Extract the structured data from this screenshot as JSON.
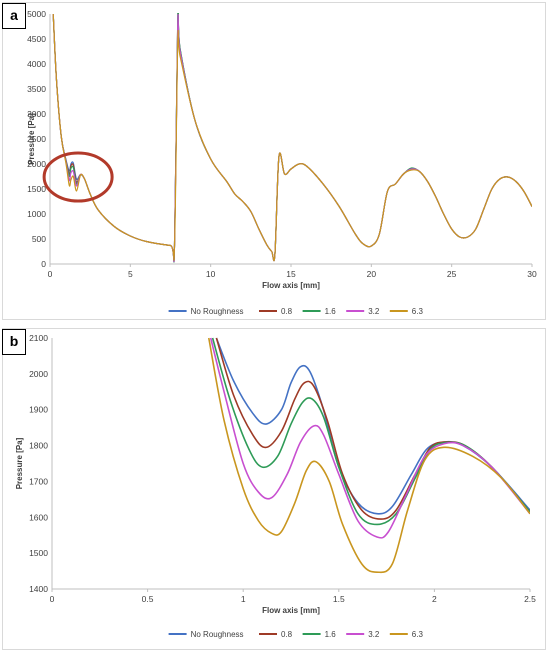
{
  "chart_data": [
    {
      "panel_label": "a",
      "type": "line",
      "xlabel": "Flow axis [mm]",
      "ylabel": "Pressure [Pa]",
      "xlim": [
        0,
        30
      ],
      "ylim": [
        0,
        5000
      ],
      "xticks": [
        "0",
        "5",
        "10",
        "15",
        "20",
        "25",
        "30"
      ],
      "yticks": [
        "0",
        "500",
        "1000",
        "1500",
        "2000",
        "2500",
        "3000",
        "3500",
        "4000",
        "4500",
        "5000"
      ],
      "grid": false,
      "legend": "bottom",
      "annotation": "red-circle",
      "series": [
        {
          "name": "No Roughness",
          "color": "#4472c4",
          "x": [
            0.2,
            0.4,
            0.7,
            1.0,
            1.2,
            1.3,
            1.45,
            1.65,
            1.9,
            2.15,
            2.5,
            3,
            4,
            5,
            6,
            7.5,
            7.75,
            7.95,
            8.1,
            9,
            10,
            11,
            11.5,
            12,
            12.5,
            13,
            13.5,
            13.8,
            14.0,
            14.25,
            14.6,
            15,
            15.5,
            16,
            17,
            18,
            19,
            19.5,
            20,
            20.5,
            21,
            21.5,
            22,
            22.5,
            23,
            23.5,
            24,
            24.5,
            25,
            25.5,
            26,
            26.5,
            27,
            27.5,
            28,
            28.5,
            29,
            29.5,
            30
          ],
          "y": [
            5000,
            3700,
            2550,
            2080,
            1860,
            2000,
            2020,
            1700,
            1790,
            1700,
            1400,
            1080,
            750,
            560,
            450,
            370,
            380,
            4850,
            4300,
            2900,
            2100,
            1650,
            1400,
            1250,
            1050,
            700,
            380,
            250,
            200,
            2150,
            1800,
            1900,
            2000,
            1950,
            1600,
            1150,
            600,
            400,
            360,
            600,
            1450,
            1600,
            1800,
            1900,
            1850,
            1650,
            1350,
            1000,
            700,
            540,
            540,
            700,
            1100,
            1500,
            1700,
            1740,
            1650,
            1450,
            1150
          ]
        },
        {
          "name": "0.8",
          "color": "#9e3a26",
          "x": [
            0.2,
            0.4,
            0.7,
            1.0,
            1.2,
            1.3,
            1.45,
            1.65,
            1.9,
            2.15,
            2.5,
            3,
            4,
            5,
            6,
            7.5,
            7.75,
            7.95,
            8.1,
            9,
            10,
            11,
            11.5,
            12,
            12.5,
            13,
            13.5,
            13.8,
            14.0,
            14.25,
            14.6,
            15,
            15.5,
            16,
            17,
            18,
            19,
            19.5,
            20,
            20.5,
            21,
            21.5,
            22,
            22.5,
            23,
            23.5,
            24,
            24.5,
            25,
            25.5,
            26,
            26.5,
            27,
            27.5,
            28,
            28.5,
            29,
            29.5,
            30
          ],
          "y": [
            5000,
            3700,
            2550,
            2060,
            1800,
            1960,
            1980,
            1640,
            1790,
            1700,
            1400,
            1080,
            750,
            560,
            450,
            370,
            380,
            4830,
            4280,
            2900,
            2100,
            1650,
            1400,
            1250,
            1050,
            700,
            380,
            250,
            200,
            2150,
            1800,
            1900,
            2000,
            1950,
            1600,
            1150,
            600,
            400,
            360,
            600,
            1450,
            1600,
            1800,
            1900,
            1850,
            1650,
            1350,
            1000,
            700,
            540,
            540,
            700,
            1100,
            1500,
            1700,
            1740,
            1650,
            1450,
            1150
          ]
        },
        {
          "name": "1.6",
          "color": "#2e9b57",
          "x": [
            0.2,
            0.4,
            0.7,
            1.0,
            1.2,
            1.3,
            1.45,
            1.65,
            1.9,
            2.15,
            2.5,
            3,
            4,
            5,
            6,
            7.5,
            7.75,
            7.95,
            8.1,
            9,
            10,
            11,
            11.5,
            12,
            12.5,
            13,
            13.5,
            13.8,
            14.0,
            14.25,
            14.6,
            15,
            15.5,
            16,
            17,
            18,
            19,
            19.5,
            20,
            20.5,
            21,
            21.5,
            22,
            22.5,
            23,
            23.5,
            24,
            24.5,
            25,
            25.5,
            26,
            26.5,
            27,
            27.5,
            28,
            28.5,
            29,
            29.5,
            30
          ],
          "y": [
            5000,
            3700,
            2550,
            2050,
            1750,
            1910,
            1930,
            1600,
            1790,
            1700,
            1400,
            1080,
            750,
            560,
            450,
            370,
            380,
            4900,
            4300,
            2900,
            2100,
            1650,
            1400,
            1250,
            1050,
            700,
            380,
            250,
            200,
            2150,
            1800,
            1900,
            2000,
            1950,
            1600,
            1150,
            600,
            400,
            360,
            600,
            1450,
            1600,
            1800,
            1920,
            1850,
            1650,
            1350,
            1000,
            700,
            540,
            540,
            700,
            1100,
            1500,
            1700,
            1740,
            1650,
            1450,
            1150
          ]
        },
        {
          "name": "3.2",
          "color": "#c84fd0",
          "x": [
            0.2,
            0.4,
            0.7,
            1.0,
            1.2,
            1.3,
            1.45,
            1.65,
            1.9,
            2.15,
            2.5,
            3,
            4,
            5,
            6,
            7.5,
            7.75,
            7.95,
            8.1,
            9,
            10,
            11,
            11.5,
            12,
            12.5,
            13,
            13.5,
            13.8,
            14.0,
            14.25,
            14.6,
            15,
            15.5,
            16,
            17,
            18,
            19,
            19.5,
            20,
            20.5,
            21,
            21.5,
            22,
            22.5,
            23,
            23.5,
            24,
            24.5,
            25,
            25.5,
            26,
            26.5,
            27,
            27.5,
            28,
            28.5,
            29,
            29.5,
            30
          ],
          "y": [
            5000,
            3700,
            2550,
            2030,
            1670,
            1820,
            1850,
            1560,
            1790,
            1700,
            1400,
            1080,
            750,
            560,
            450,
            370,
            380,
            4750,
            4250,
            2900,
            2100,
            1650,
            1400,
            1250,
            1050,
            700,
            380,
            250,
            200,
            2150,
            1800,
            1900,
            2000,
            1950,
            1600,
            1150,
            600,
            400,
            360,
            600,
            1450,
            1600,
            1800,
            1900,
            1850,
            1650,
            1350,
            1000,
            700,
            540,
            540,
            700,
            1100,
            1500,
            1700,
            1740,
            1650,
            1450,
            1150
          ]
        },
        {
          "name": "6.3",
          "color": "#c9961f",
          "x": [
            0.2,
            0.4,
            0.7,
            1.0,
            1.2,
            1.3,
            1.45,
            1.65,
            1.9,
            2.15,
            2.5,
            3,
            4,
            5,
            6,
            7.5,
            7.75,
            7.95,
            8.1,
            9,
            10,
            11,
            11.5,
            12,
            12.5,
            13,
            13.5,
            13.8,
            14.0,
            14.25,
            14.6,
            15,
            15.5,
            16,
            17,
            18,
            19,
            19.5,
            20,
            20.5,
            21,
            21.5,
            22,
            22.5,
            23,
            23.5,
            24,
            24.5,
            25,
            25.5,
            26,
            26.5,
            27,
            27.5,
            28,
            28.5,
            29,
            29.5,
            30
          ],
          "y": [
            5000,
            3700,
            2550,
            2000,
            1570,
            1680,
            1750,
            1460,
            1780,
            1700,
            1400,
            1080,
            750,
            560,
            450,
            370,
            380,
            4400,
            4150,
            2900,
            2100,
            1650,
            1400,
            1250,
            1050,
            700,
            380,
            250,
            200,
            2150,
            1800,
            1900,
            2000,
            1950,
            1600,
            1150,
            600,
            400,
            360,
            600,
            1450,
            1600,
            1800,
            1880,
            1850,
            1650,
            1350,
            1000,
            700,
            540,
            540,
            700,
            1100,
            1500,
            1700,
            1740,
            1650,
            1450,
            1150
          ]
        }
      ]
    },
    {
      "panel_label": "b",
      "type": "line",
      "xlabel": "Flow axis [mm]",
      "ylabel": "Pressure [Pa]",
      "xlim": [
        0,
        2.5
      ],
      "ylim": [
        1400,
        2100
      ],
      "xticks": [
        "0",
        "0.5",
        "1",
        "1.5",
        "2",
        "2.5"
      ],
      "yticks": [
        "1400",
        "1500",
        "1600",
        "1700",
        "1800",
        "1900",
        "2000",
        "2100"
      ],
      "grid": false,
      "legend": "bottom",
      "series": [
        {
          "name": "No Roughness",
          "color": "#4472c4",
          "x": [
            0.86,
            0.95,
            1.05,
            1.12,
            1.2,
            1.25,
            1.3,
            1.35,
            1.42,
            1.5,
            1.6,
            1.7,
            1.78,
            1.88,
            1.96,
            2.05,
            2.15,
            2.3,
            2.5
          ],
          "y": [
            2100,
            1980,
            1890,
            1860,
            1900,
            1975,
            2020,
            2005,
            1900,
            1740,
            1640,
            1610,
            1630,
            1720,
            1790,
            1810,
            1800,
            1740,
            1620
          ]
        },
        {
          "name": "0.8",
          "color": "#9e3a26",
          "x": [
            0.86,
            0.95,
            1.05,
            1.12,
            1.2,
            1.27,
            1.32,
            1.37,
            1.44,
            1.52,
            1.62,
            1.72,
            1.8,
            1.9,
            1.98,
            2.06,
            2.16,
            2.3,
            2.5
          ],
          "y": [
            2100,
            1940,
            1830,
            1795,
            1840,
            1930,
            1975,
            1965,
            1870,
            1720,
            1620,
            1595,
            1620,
            1720,
            1795,
            1810,
            1800,
            1740,
            1615
          ]
        },
        {
          "name": "1.6",
          "color": "#2e9b57",
          "x": [
            0.84,
            0.93,
            1.03,
            1.1,
            1.18,
            1.25,
            1.31,
            1.36,
            1.42,
            1.5,
            1.6,
            1.7,
            1.8,
            1.9,
            1.98,
            2.06,
            2.16,
            2.3,
            2.5
          ],
          "y": [
            2100,
            1930,
            1790,
            1740,
            1770,
            1860,
            1920,
            1930,
            1880,
            1740,
            1610,
            1580,
            1610,
            1710,
            1790,
            1808,
            1800,
            1740,
            1615
          ]
        },
        {
          "name": "3.2",
          "color": "#c84fd0",
          "x": [
            0.83,
            0.9,
            1.0,
            1.08,
            1.15,
            1.23,
            1.3,
            1.37,
            1.42,
            1.5,
            1.6,
            1.7,
            1.76,
            1.85,
            1.95,
            2.05,
            2.15,
            2.3,
            2.5
          ],
          "y": [
            2100,
            1950,
            1750,
            1670,
            1655,
            1720,
            1810,
            1855,
            1830,
            1720,
            1590,
            1545,
            1560,
            1660,
            1770,
            1805,
            1800,
            1740,
            1610
          ]
        },
        {
          "name": "6.3",
          "color": "#c9961f",
          "x": [
            0.82,
            0.9,
            1.0,
            1.08,
            1.15,
            1.2,
            1.27,
            1.33,
            1.38,
            1.45,
            1.52,
            1.62,
            1.7,
            1.78,
            1.86,
            1.95,
            2.05,
            2.2,
            2.35,
            2.5
          ],
          "y": [
            2100,
            1870,
            1680,
            1590,
            1555,
            1560,
            1640,
            1730,
            1755,
            1700,
            1580,
            1470,
            1447,
            1470,
            1620,
            1760,
            1795,
            1770,
            1710,
            1610
          ]
        }
      ]
    }
  ]
}
